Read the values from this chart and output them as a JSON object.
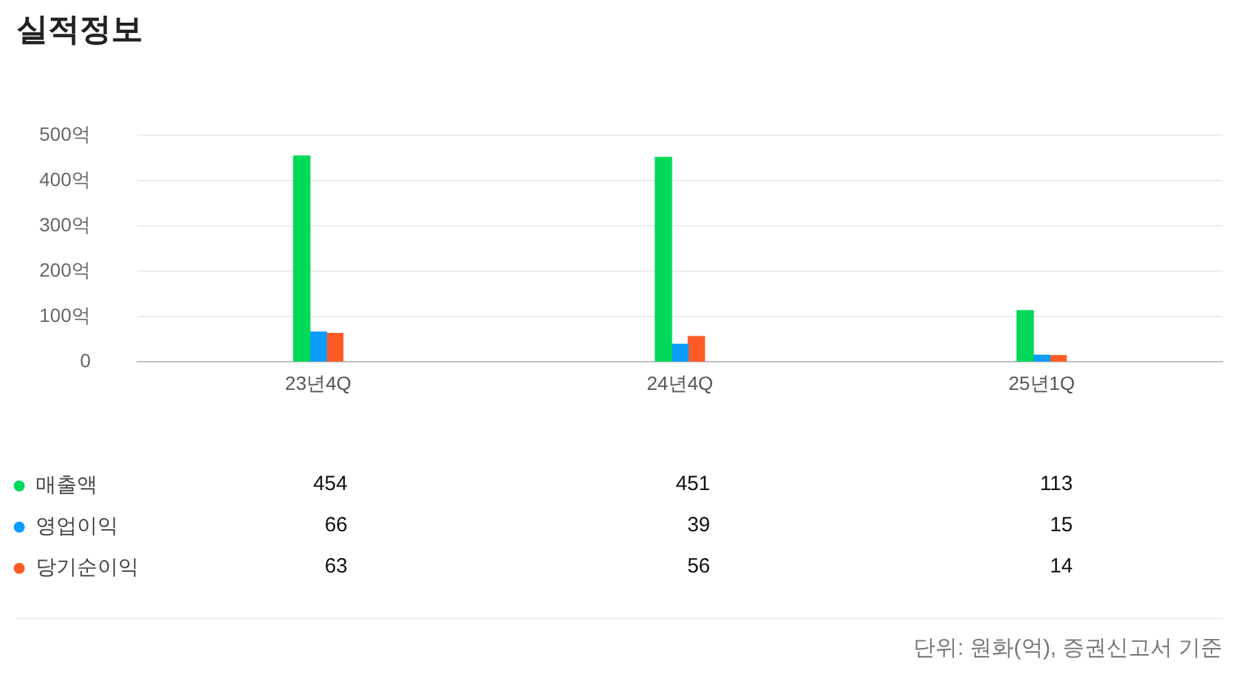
{
  "chart_data": {
    "type": "bar",
    "title": "실적정보",
    "categories": [
      "23년4Q",
      "24년4Q",
      "25년1Q"
    ],
    "series": [
      {
        "name": "매출액",
        "color": "#00d95a",
        "values": [
          454,
          451,
          113
        ]
      },
      {
        "name": "영업이익",
        "color": "#0a9cff",
        "values": [
          66,
          39,
          15
        ]
      },
      {
        "name": "당기순이익",
        "color": "#ff5a26",
        "values": [
          63,
          56,
          14
        ]
      }
    ],
    "ylim": [
      0,
      500
    ],
    "yticks": [
      0,
      {
        "value": 100,
        "label": "100억"
      },
      {
        "value": 200,
        "label": "200억"
      },
      {
        "value": 300,
        "label": "300억"
      },
      {
        "value": 400,
        "label": "400억"
      },
      {
        "value": 500,
        "label": "500억"
      }
    ],
    "grid": "y",
    "legend": "bottom",
    "data_labels": true,
    "annotations": [
      "단위: 원화(억), 증권신고서 기준"
    ]
  }
}
